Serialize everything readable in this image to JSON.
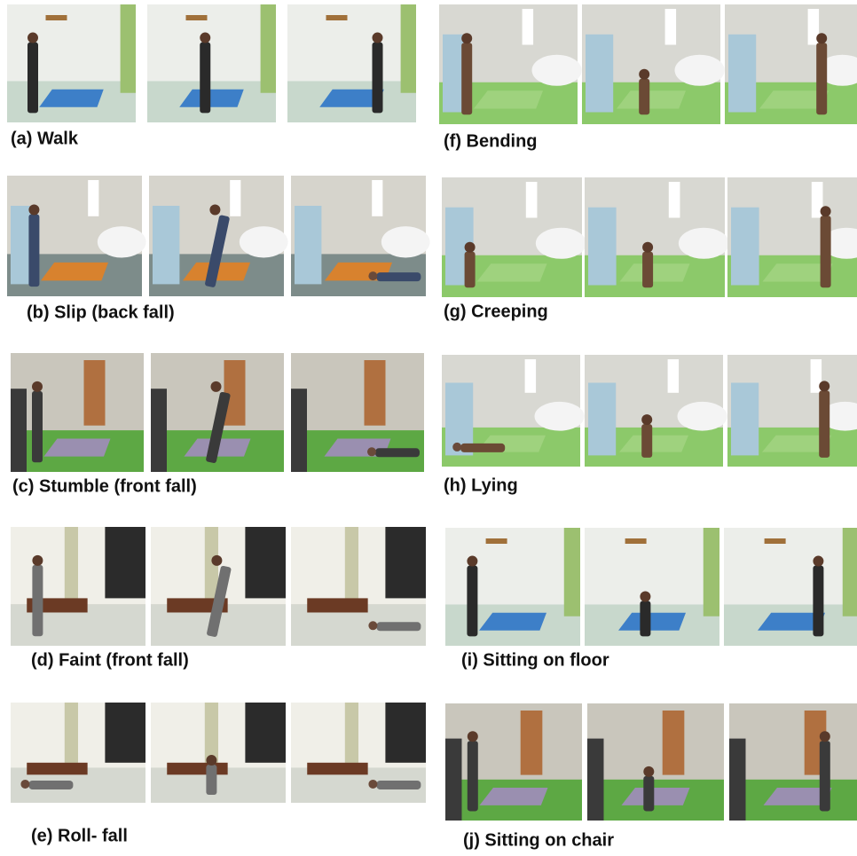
{
  "panels": [
    {
      "caption": "(a) Walk"
    },
    {
      "caption": "(b) Slip (back fall)"
    },
    {
      "caption": "(c) Stumble (front fall)"
    },
    {
      "caption": "(d) Faint (front fall)"
    },
    {
      "caption": "(e)  Roll- fall"
    },
    {
      "caption": "(f) Bending"
    },
    {
      "caption": "(g) Creeping"
    },
    {
      "caption": "(h) Lying"
    },
    {
      "caption": "(i) Sitting on floor"
    },
    {
      "caption": "(j) Sitting on chair"
    }
  ]
}
